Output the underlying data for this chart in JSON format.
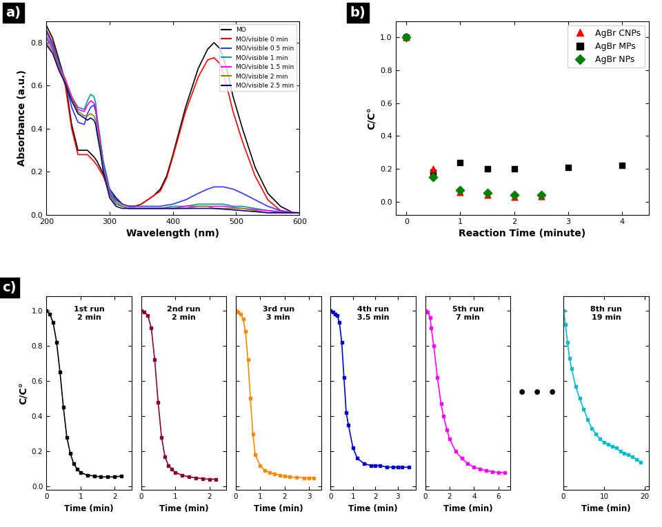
{
  "panel_a": {
    "xlabel": "Wavelength (nm)",
    "ylabel": "Absorbance (a.u.)",
    "xlim": [
      200,
      600
    ],
    "ylim": [
      0.0,
      0.9
    ],
    "yticks": [
      0.0,
      0.2,
      0.4,
      0.6,
      0.8
    ],
    "xticks": [
      200,
      300,
      400,
      500,
      600
    ],
    "legend": [
      "MO",
      "MO/visible 0 min",
      "MO/visible 0.5 min",
      "MO/visible 1 min",
      "MO/visible 1.5 min",
      "MO/visible 2 min",
      "MO/visible 2.5 min"
    ],
    "colors": [
      "#000000",
      "#ff0000",
      "#3333ff",
      "#009999",
      "#ff00ff",
      "#888800",
      "#000088"
    ],
    "curves": {
      "MO": [
        [
          200,
          0.88
        ],
        [
          210,
          0.82
        ],
        [
          220,
          0.72
        ],
        [
          230,
          0.62
        ],
        [
          240,
          0.42
        ],
        [
          250,
          0.3
        ],
        [
          265,
          0.3
        ],
        [
          275,
          0.27
        ],
        [
          280,
          0.25
        ],
        [
          290,
          0.19
        ],
        [
          300,
          0.12
        ],
        [
          310,
          0.08
        ],
        [
          320,
          0.05
        ],
        [
          330,
          0.04
        ],
        [
          340,
          0.04
        ],
        [
          350,
          0.05
        ],
        [
          360,
          0.07
        ],
        [
          370,
          0.09
        ],
        [
          380,
          0.12
        ],
        [
          390,
          0.18
        ],
        [
          400,
          0.28
        ],
        [
          420,
          0.5
        ],
        [
          440,
          0.68
        ],
        [
          455,
          0.77
        ],
        [
          465,
          0.8
        ],
        [
          475,
          0.77
        ],
        [
          485,
          0.68
        ],
        [
          495,
          0.55
        ],
        [
          510,
          0.4
        ],
        [
          530,
          0.22
        ],
        [
          550,
          0.1
        ],
        [
          570,
          0.04
        ],
        [
          590,
          0.01
        ],
        [
          600,
          0.01
        ]
      ],
      "0min": [
        [
          200,
          0.86
        ],
        [
          210,
          0.8
        ],
        [
          220,
          0.7
        ],
        [
          230,
          0.6
        ],
        [
          240,
          0.4
        ],
        [
          250,
          0.28
        ],
        [
          265,
          0.28
        ],
        [
          275,
          0.25
        ],
        [
          280,
          0.23
        ],
        [
          290,
          0.18
        ],
        [
          300,
          0.1
        ],
        [
          310,
          0.07
        ],
        [
          320,
          0.05
        ],
        [
          330,
          0.04
        ],
        [
          340,
          0.04
        ],
        [
          350,
          0.05
        ],
        [
          360,
          0.07
        ],
        [
          370,
          0.09
        ],
        [
          380,
          0.11
        ],
        [
          390,
          0.17
        ],
        [
          400,
          0.27
        ],
        [
          420,
          0.48
        ],
        [
          440,
          0.64
        ],
        [
          455,
          0.72
        ],
        [
          465,
          0.73
        ],
        [
          475,
          0.7
        ],
        [
          485,
          0.6
        ],
        [
          495,
          0.48
        ],
        [
          510,
          0.34
        ],
        [
          530,
          0.18
        ],
        [
          550,
          0.07
        ],
        [
          570,
          0.02
        ],
        [
          590,
          0.01
        ],
        [
          600,
          0.01
        ]
      ],
      "0.5min": [
        [
          200,
          0.85
        ],
        [
          210,
          0.79
        ],
        [
          220,
          0.7
        ],
        [
          230,
          0.62
        ],
        [
          240,
          0.5
        ],
        [
          250,
          0.43
        ],
        [
          260,
          0.42
        ],
        [
          265,
          0.47
        ],
        [
          270,
          0.5
        ],
        [
          275,
          0.51
        ],
        [
          278,
          0.48
        ],
        [
          280,
          0.44
        ],
        [
          285,
          0.35
        ],
        [
          290,
          0.25
        ],
        [
          300,
          0.12
        ],
        [
          310,
          0.07
        ],
        [
          320,
          0.05
        ],
        [
          330,
          0.04
        ],
        [
          340,
          0.04
        ],
        [
          350,
          0.04
        ],
        [
          360,
          0.04
        ],
        [
          380,
          0.04
        ],
        [
          400,
          0.05
        ],
        [
          420,
          0.07
        ],
        [
          440,
          0.1
        ],
        [
          455,
          0.12
        ],
        [
          465,
          0.13
        ],
        [
          480,
          0.13
        ],
        [
          495,
          0.12
        ],
        [
          510,
          0.1
        ],
        [
          530,
          0.07
        ],
        [
          550,
          0.04
        ],
        [
          570,
          0.02
        ],
        [
          590,
          0.01
        ],
        [
          600,
          0.01
        ]
      ],
      "1min": [
        [
          200,
          0.83
        ],
        [
          210,
          0.78
        ],
        [
          220,
          0.7
        ],
        [
          230,
          0.63
        ],
        [
          240,
          0.55
        ],
        [
          250,
          0.5
        ],
        [
          260,
          0.49
        ],
        [
          265,
          0.53
        ],
        [
          270,
          0.56
        ],
        [
          275,
          0.55
        ],
        [
          278,
          0.52
        ],
        [
          280,
          0.46
        ],
        [
          285,
          0.36
        ],
        [
          290,
          0.24
        ],
        [
          300,
          0.11
        ],
        [
          310,
          0.06
        ],
        [
          320,
          0.04
        ],
        [
          330,
          0.03
        ],
        [
          340,
          0.03
        ],
        [
          350,
          0.03
        ],
        [
          380,
          0.03
        ],
        [
          400,
          0.04
        ],
        [
          420,
          0.04
        ],
        [
          440,
          0.05
        ],
        [
          455,
          0.05
        ],
        [
          465,
          0.05
        ],
        [
          480,
          0.05
        ],
        [
          495,
          0.04
        ],
        [
          510,
          0.04
        ],
        [
          530,
          0.03
        ],
        [
          550,
          0.02
        ],
        [
          570,
          0.01
        ],
        [
          600,
          0.01
        ]
      ],
      "1.5min": [
        [
          200,
          0.82
        ],
        [
          210,
          0.77
        ],
        [
          220,
          0.69
        ],
        [
          230,
          0.63
        ],
        [
          240,
          0.55
        ],
        [
          250,
          0.49
        ],
        [
          260,
          0.48
        ],
        [
          265,
          0.51
        ],
        [
          270,
          0.53
        ],
        [
          275,
          0.52
        ],
        [
          278,
          0.5
        ],
        [
          280,
          0.44
        ],
        [
          285,
          0.34
        ],
        [
          290,
          0.22
        ],
        [
          300,
          0.1
        ],
        [
          310,
          0.05
        ],
        [
          320,
          0.04
        ],
        [
          330,
          0.03
        ],
        [
          340,
          0.03
        ],
        [
          380,
          0.03
        ],
        [
          400,
          0.03
        ],
        [
          420,
          0.04
        ],
        [
          440,
          0.04
        ],
        [
          455,
          0.04
        ],
        [
          465,
          0.04
        ],
        [
          480,
          0.04
        ],
        [
          510,
          0.03
        ],
        [
          550,
          0.02
        ],
        [
          600,
          0.01
        ]
      ],
      "2min": [
        [
          200,
          0.8
        ],
        [
          210,
          0.76
        ],
        [
          220,
          0.68
        ],
        [
          230,
          0.62
        ],
        [
          240,
          0.54
        ],
        [
          250,
          0.48
        ],
        [
          260,
          0.46
        ],
        [
          265,
          0.46
        ],
        [
          270,
          0.47
        ],
        [
          275,
          0.46
        ],
        [
          278,
          0.44
        ],
        [
          280,
          0.4
        ],
        [
          285,
          0.32
        ],
        [
          290,
          0.21
        ],
        [
          300,
          0.09
        ],
        [
          310,
          0.05
        ],
        [
          320,
          0.04
        ],
        [
          330,
          0.03
        ],
        [
          340,
          0.03
        ],
        [
          380,
          0.03
        ],
        [
          400,
          0.03
        ],
        [
          420,
          0.03
        ],
        [
          440,
          0.04
        ],
        [
          455,
          0.04
        ],
        [
          465,
          0.03
        ],
        [
          510,
          0.03
        ],
        [
          550,
          0.01
        ],
        [
          600,
          0.01
        ]
      ],
      "2.5min": [
        [
          200,
          0.79
        ],
        [
          210,
          0.75
        ],
        [
          220,
          0.67
        ],
        [
          230,
          0.61
        ],
        [
          240,
          0.53
        ],
        [
          250,
          0.47
        ],
        [
          260,
          0.45
        ],
        [
          265,
          0.44
        ],
        [
          270,
          0.45
        ],
        [
          275,
          0.44
        ],
        [
          278,
          0.42
        ],
        [
          280,
          0.38
        ],
        [
          285,
          0.3
        ],
        [
          290,
          0.2
        ],
        [
          300,
          0.08
        ],
        [
          310,
          0.04
        ],
        [
          320,
          0.03
        ],
        [
          330,
          0.03
        ],
        [
          340,
          0.03
        ],
        [
          380,
          0.03
        ],
        [
          400,
          0.03
        ],
        [
          420,
          0.03
        ],
        [
          440,
          0.03
        ],
        [
          455,
          0.03
        ],
        [
          465,
          0.03
        ],
        [
          510,
          0.02
        ],
        [
          550,
          0.01
        ],
        [
          600,
          0.01
        ]
      ]
    }
  },
  "panel_b": {
    "xlabel": "Reaction Time (minute)",
    "ylabel": "C/C°",
    "xlim": [
      -0.2,
      4.5
    ],
    "ylim": [
      -0.08,
      1.1
    ],
    "yticks": [
      0.0,
      0.2,
      0.4,
      0.6,
      0.8,
      1.0
    ],
    "xticks": [
      0,
      1,
      2,
      3,
      4
    ],
    "AgBr_CNPs": {
      "x": [
        0,
        0.5,
        1.0,
        1.5,
        2.0,
        2.5
      ],
      "y": [
        1.0,
        0.2,
        0.06,
        0.04,
        0.03,
        0.035
      ]
    },
    "AgBr_MPs": {
      "x": [
        0,
        0.5,
        1.0,
        1.5,
        2.0,
        3.0,
        4.0
      ],
      "y": [
        1.0,
        0.18,
        0.24,
        0.2,
        0.2,
        0.21,
        0.22
      ]
    },
    "AgBr_NPs": {
      "x": [
        0,
        0.5,
        1.0,
        1.5,
        2.0,
        2.5
      ],
      "y": [
        1.0,
        0.15,
        0.07,
        0.055,
        0.04,
        0.04
      ]
    }
  },
  "panel_c": [
    {
      "run_line1": "1st run",
      "run_line2": "2 min",
      "superscript": "st",
      "color": "#000000",
      "xlim": [
        0,
        2.5
      ],
      "xticks": [
        0,
        1,
        2
      ],
      "x": [
        0,
        0.1,
        0.2,
        0.3,
        0.4,
        0.5,
        0.6,
        0.7,
        0.8,
        0.9,
        1.0,
        1.2,
        1.4,
        1.6,
        1.8,
        2.0,
        2.2
      ],
      "y": [
        1.0,
        0.98,
        0.93,
        0.82,
        0.65,
        0.45,
        0.28,
        0.19,
        0.13,
        0.1,
        0.08,
        0.065,
        0.06,
        0.055,
        0.055,
        0.055,
        0.06
      ]
    },
    {
      "run_line1": "2nd run",
      "run_line2": "2 min",
      "superscript": "nd",
      "color": "#880033",
      "xlim": [
        0,
        2.5
      ],
      "xticks": [
        0,
        1,
        2
      ],
      "x": [
        0,
        0.1,
        0.2,
        0.3,
        0.4,
        0.5,
        0.6,
        0.7,
        0.8,
        0.9,
        1.0,
        1.2,
        1.4,
        1.6,
        1.8,
        2.0,
        2.2
      ],
      "y": [
        1.0,
        0.99,
        0.97,
        0.9,
        0.72,
        0.48,
        0.28,
        0.17,
        0.12,
        0.1,
        0.08,
        0.065,
        0.055,
        0.05,
        0.045,
        0.042,
        0.042
      ]
    },
    {
      "run_line1": "3rd run",
      "run_line2": "3 min",
      "superscript": "rd",
      "color": "#ff8800",
      "xlim": [
        0,
        3.5
      ],
      "xticks": [
        0,
        1,
        2,
        3
      ],
      "x": [
        0,
        0.1,
        0.2,
        0.3,
        0.4,
        0.5,
        0.6,
        0.7,
        0.8,
        1.0,
        1.2,
        1.4,
        1.6,
        1.8,
        2.0,
        2.2,
        2.5,
        2.8,
        3.0,
        3.2
      ],
      "y": [
        1.0,
        0.99,
        0.98,
        0.95,
        0.88,
        0.72,
        0.5,
        0.3,
        0.18,
        0.12,
        0.09,
        0.08,
        0.07,
        0.065,
        0.06,
        0.055,
        0.052,
        0.05,
        0.05,
        0.05
      ]
    },
    {
      "run_line1": "4th run",
      "run_line2": "3.5 min",
      "superscript": "th",
      "color": "#0000cc",
      "xlim": [
        0,
        3.8
      ],
      "xticks": [
        0,
        1,
        2,
        3
      ],
      "x": [
        0,
        0.1,
        0.2,
        0.3,
        0.4,
        0.5,
        0.6,
        0.7,
        0.8,
        1.0,
        1.2,
        1.5,
        1.8,
        2.0,
        2.2,
        2.5,
        2.8,
        3.0,
        3.2,
        3.5
      ],
      "y": [
        1.0,
        0.99,
        0.98,
        0.97,
        0.93,
        0.82,
        0.62,
        0.42,
        0.35,
        0.22,
        0.16,
        0.13,
        0.12,
        0.12,
        0.12,
        0.11,
        0.11,
        0.11,
        0.11,
        0.11
      ]
    },
    {
      "run_line1": "5th run",
      "run_line2": "7 min",
      "superscript": "th",
      "color": "#ff00ff",
      "xlim": [
        0,
        7.0
      ],
      "xticks": [
        0,
        2,
        4,
        6
      ],
      "x": [
        0,
        0.2,
        0.4,
        0.5,
        0.7,
        1.0,
        1.3,
        1.5,
        1.8,
        2.0,
        2.5,
        3.0,
        3.5,
        4.0,
        4.5,
        5.0,
        5.5,
        6.0,
        6.5
      ],
      "y": [
        1.0,
        0.99,
        0.96,
        0.9,
        0.8,
        0.62,
        0.47,
        0.4,
        0.32,
        0.27,
        0.2,
        0.16,
        0.13,
        0.11,
        0.1,
        0.09,
        0.085,
        0.08,
        0.08
      ]
    },
    {
      "run_line1": "8th run",
      "run_line2": "19 min",
      "superscript": "th",
      "color": "#00bbcc",
      "xlim": [
        0,
        21
      ],
      "xticks": [
        0,
        10,
        20
      ],
      "x": [
        0,
        0.5,
        1.0,
        1.5,
        2.0,
        3.0,
        4.0,
        5.0,
        6.0,
        7.0,
        8.0,
        9.0,
        10.0,
        11.0,
        12.0,
        13.0,
        14.0,
        15.0,
        16.0,
        17.0,
        18.0,
        19.0
      ],
      "y": [
        1.0,
        0.92,
        0.82,
        0.73,
        0.67,
        0.57,
        0.5,
        0.44,
        0.38,
        0.33,
        0.3,
        0.27,
        0.25,
        0.24,
        0.23,
        0.22,
        0.2,
        0.19,
        0.18,
        0.17,
        0.155,
        0.14
      ]
    }
  ]
}
